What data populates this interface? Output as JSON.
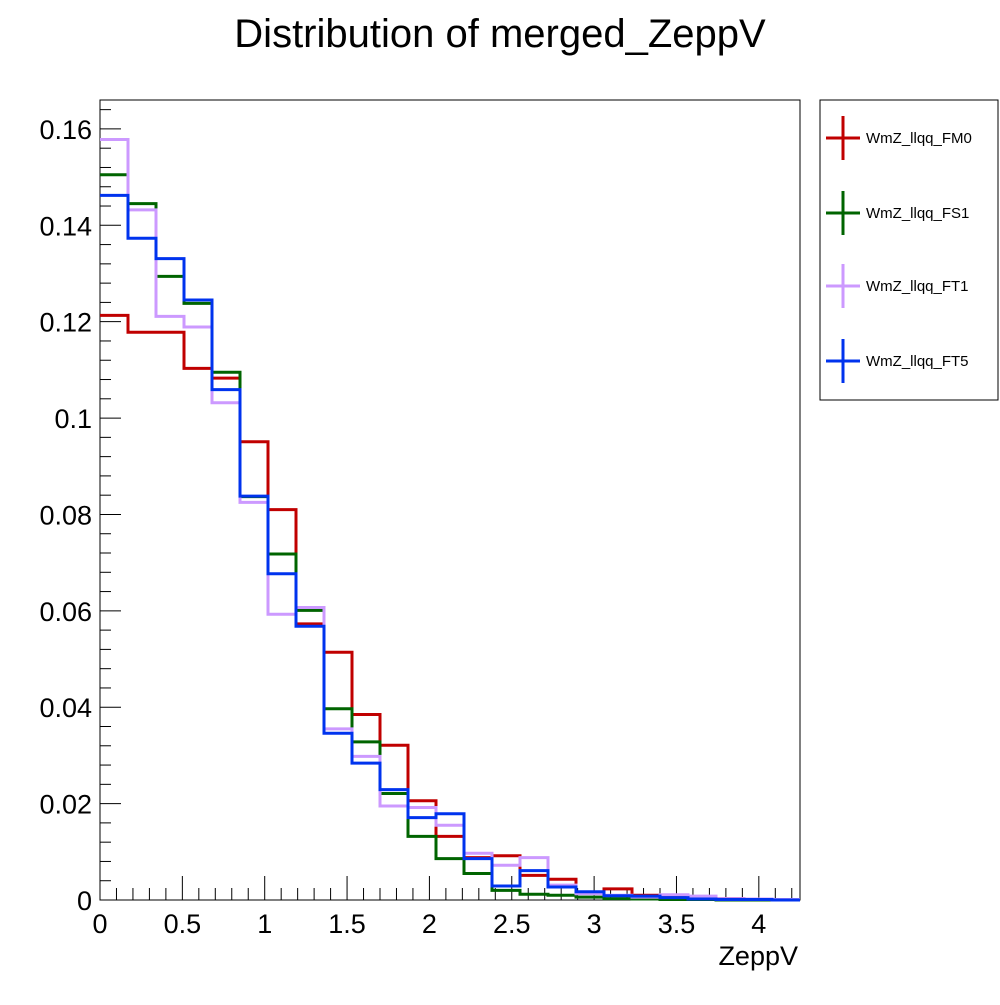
{
  "chart_data": {
    "type": "line",
    "title": "Distribution of merged_ZeppV",
    "xlabel": "ZeppV",
    "ylabel": "",
    "xlim": [
      0,
      4.25
    ],
    "ylim": [
      0,
      0.166
    ],
    "x_ticks": [
      0,
      0.5,
      1,
      1.5,
      2,
      2.5,
      3,
      3.5,
      4
    ],
    "x_tick_labels": [
      "0",
      "0.5",
      "1",
      "1.5",
      "2",
      "2.5",
      "3",
      "3.5",
      "4"
    ],
    "y_ticks": [
      0,
      0.02,
      0.04,
      0.06,
      0.08,
      0.1,
      0.12,
      0.14,
      0.16
    ],
    "y_tick_labels": [
      "0",
      "0.02",
      "0.04",
      "0.06",
      "0.08",
      "0.1",
      "0.12",
      "0.14",
      "0.16"
    ],
    "bin_edges": [
      0,
      0.17,
      0.34,
      0.51,
      0.68,
      0.85,
      1.02,
      1.19,
      1.36,
      1.53,
      1.7,
      1.87,
      2.04,
      2.21,
      2.38,
      2.55,
      2.72,
      2.89,
      3.06,
      3.23,
      3.4,
      3.57,
      3.74,
      3.91,
      4.08,
      4.25
    ],
    "legend_position": "right-outside-top",
    "series": [
      {
        "name": "WmZ_llqq_FM0",
        "color": "#c00000",
        "values": [
          0.1213,
          0.1178,
          0.1178,
          0.1103,
          0.1083,
          0.0951,
          0.081,
          0.0573,
          0.0514,
          0.0385,
          0.0321,
          0.0206,
          0.0132,
          0.0088,
          0.0092,
          0.0051,
          0.0043,
          0.0016,
          0.0023,
          0.001,
          0.0009,
          0.0006,
          0.0003,
          0.0002,
          0.0001
        ]
      },
      {
        "name": "WmZ_llqq_FS1",
        "color": "#006400",
        "values": [
          0.1505,
          0.1445,
          0.1294,
          0.1238,
          0.1095,
          0.0837,
          0.0718,
          0.0601,
          0.0397,
          0.0328,
          0.0221,
          0.0132,
          0.0086,
          0.0055,
          0.002,
          0.0012,
          0.001,
          0.0006,
          0.0003,
          0.0002,
          0.0001,
          0.0001,
          0.0,
          0.0,
          0.0
        ]
      },
      {
        "name": "WmZ_llqq_FT1",
        "color": "#cc99ff",
        "values": [
          0.1578,
          0.1432,
          0.1211,
          0.1189,
          0.1032,
          0.0825,
          0.0593,
          0.0607,
          0.0355,
          0.0298,
          0.0195,
          0.0192,
          0.0155,
          0.0097,
          0.0072,
          0.0088,
          0.0031,
          0.0013,
          0.001,
          0.0006,
          0.0011,
          0.0008,
          0.0003,
          0.0002,
          0.0001
        ]
      },
      {
        "name": "WmZ_llqq_FT5",
        "color": "#0033ee",
        "values": [
          0.1462,
          0.1373,
          0.1331,
          0.1245,
          0.1059,
          0.0838,
          0.0677,
          0.0568,
          0.0346,
          0.0284,
          0.0229,
          0.0171,
          0.0179,
          0.0086,
          0.0029,
          0.0061,
          0.0027,
          0.0017,
          0.0009,
          0.0008,
          0.0005,
          0.0002,
          0.0001,
          0.0001,
          0.0
        ]
      }
    ]
  }
}
